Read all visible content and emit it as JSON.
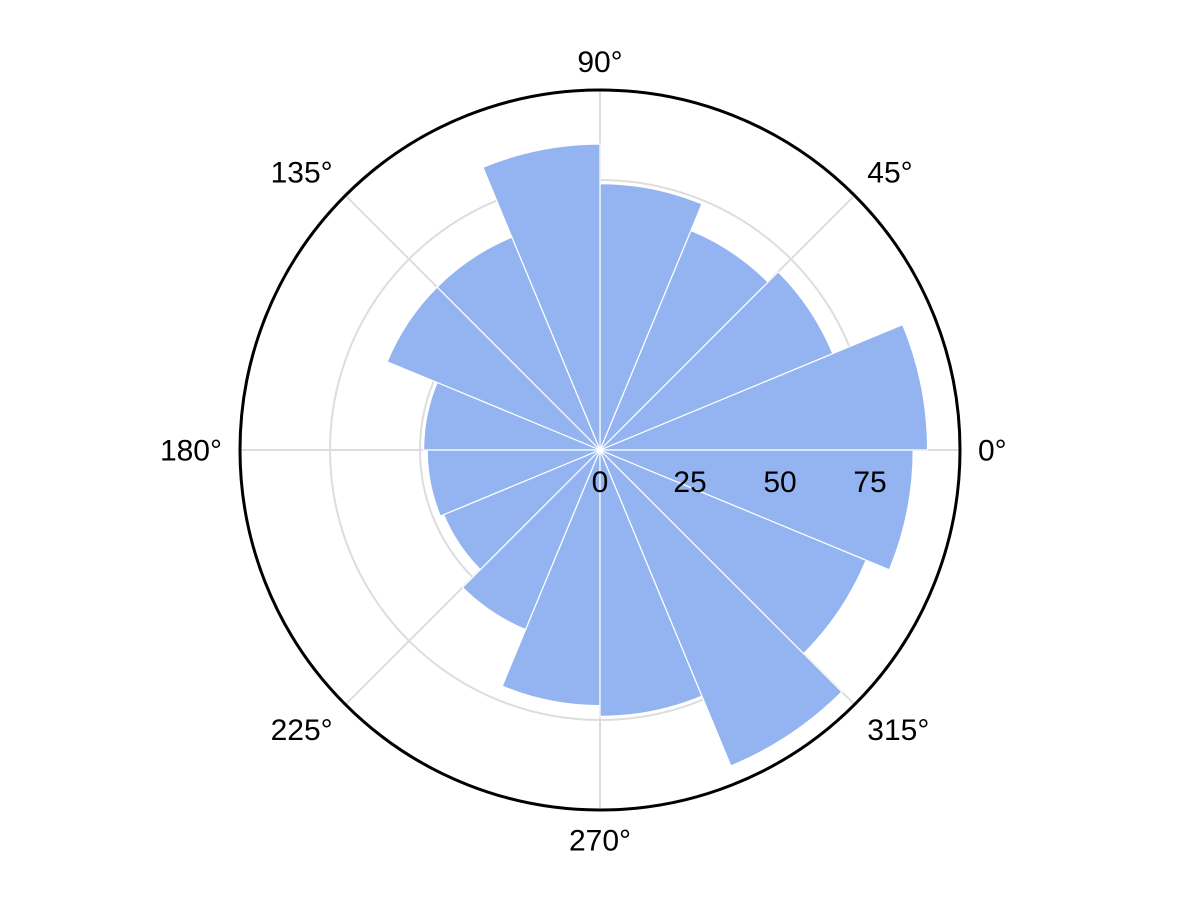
{
  "chart_data": {
    "type": "bar",
    "subtype": "polar-rose",
    "title": "",
    "angle_unit": "degrees",
    "angular_ticks": [
      {
        "angle": 0,
        "label": "0°"
      },
      {
        "angle": 45,
        "label": "45°"
      },
      {
        "angle": 90,
        "label": "90°"
      },
      {
        "angle": 135,
        "label": "135°"
      },
      {
        "angle": 180,
        "label": "180°"
      },
      {
        "angle": 225,
        "label": "225°"
      },
      {
        "angle": 270,
        "label": "270°"
      },
      {
        "angle": 315,
        "label": "315°"
      }
    ],
    "radial_ticks": [
      {
        "value": 0,
        "label": "0"
      },
      {
        "value": 25,
        "label": "25"
      },
      {
        "value": 50,
        "label": "50"
      },
      {
        "value": 75,
        "label": "75"
      }
    ],
    "rlim": [
      0,
      100
    ],
    "radial_label_angle": 0,
    "grid": true,
    "bar_width_deg": 22.5,
    "series": [
      {
        "color": "#93b4f0",
        "bars": [
          {
            "angle": 11.25,
            "value": 91
          },
          {
            "angle": 33.75,
            "value": 70
          },
          {
            "angle": 56.25,
            "value": 66
          },
          {
            "angle": 78.75,
            "value": 74
          },
          {
            "angle": 101.25,
            "value": 85
          },
          {
            "angle": 123.75,
            "value": 64
          },
          {
            "angle": 146.25,
            "value": 64
          },
          {
            "angle": 168.75,
            "value": 49
          },
          {
            "angle": 191.25,
            "value": 48
          },
          {
            "angle": 213.75,
            "value": 47
          },
          {
            "angle": 236.25,
            "value": 54
          },
          {
            "angle": 258.75,
            "value": 71
          },
          {
            "angle": 281.25,
            "value": 74
          },
          {
            "angle": 303.75,
            "value": 95
          },
          {
            "angle": 326.25,
            "value": 80
          },
          {
            "angle": 348.75,
            "value": 87
          }
        ]
      }
    ],
    "colors": {
      "bar": "#93b4f0",
      "bar_edge": "#ffffff",
      "grid": "#dddddd",
      "spine": "#000000",
      "text": "#000000"
    }
  }
}
